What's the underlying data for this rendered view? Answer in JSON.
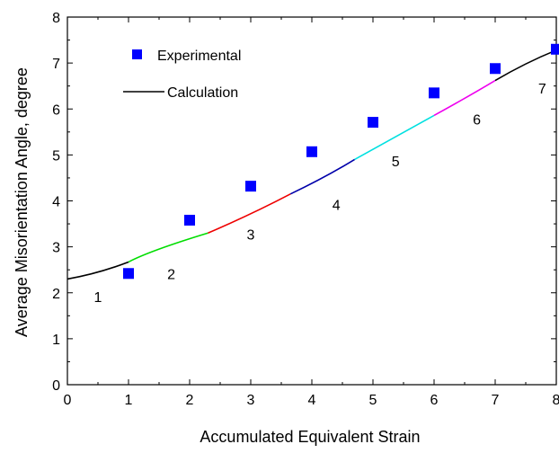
{
  "chart_data": {
    "type": "scatter",
    "title": "",
    "xlabel": "Accumulated Equivalent Strain",
    "ylabel": "Average Misorientation Angle, degree",
    "xlim": [
      0,
      8
    ],
    "ylim": [
      0,
      8
    ],
    "x_ticks": [
      0,
      1,
      2,
      3,
      4,
      5,
      6,
      7,
      8
    ],
    "y_ticks": [
      0,
      1,
      2,
      3,
      4,
      5,
      6,
      7,
      8
    ],
    "grid": false,
    "legend": {
      "position": "top-left",
      "entries": [
        {
          "label": "Experimental",
          "marker": "square",
          "color": "#0000ff"
        },
        {
          "label": "Calculation",
          "marker": "line",
          "color": "#000000"
        }
      ]
    },
    "series": [
      {
        "name": "Experimental",
        "kind": "scatter",
        "color": "#0000ff",
        "points": [
          {
            "x": 1,
            "y": 2.42
          },
          {
            "x": 2,
            "y": 3.58
          },
          {
            "x": 3,
            "y": 4.32
          },
          {
            "x": 4,
            "y": 5.07
          },
          {
            "x": 5,
            "y": 5.71
          },
          {
            "x": 6,
            "y": 6.35
          },
          {
            "x": 7,
            "y": 6.88
          },
          {
            "x": 8,
            "y": 7.3
          }
        ]
      },
      {
        "name": "Calculation",
        "kind": "line",
        "segments": [
          {
            "color": "#000000",
            "points": [
              [
                0,
                2.3
              ],
              [
                0.5,
                2.45
              ],
              [
                1.0,
                2.67
              ]
            ]
          },
          {
            "color": "#00dd00",
            "points": [
              [
                1.0,
                2.67
              ],
              [
                1.5,
                2.95
              ],
              [
                2.3,
                3.3
              ]
            ]
          },
          {
            "color": "#ee0000",
            "points": [
              [
                2.3,
                3.3
              ],
              [
                3.0,
                3.72
              ],
              [
                3.65,
                4.15
              ]
            ]
          },
          {
            "color": "#0000aa",
            "points": [
              [
                3.65,
                4.15
              ],
              [
                4.2,
                4.52
              ],
              [
                4.7,
                4.9
              ]
            ]
          },
          {
            "color": "#00e0e0",
            "points": [
              [
                4.7,
                4.9
              ],
              [
                5.35,
                5.38
              ],
              [
                6.0,
                5.86
              ]
            ]
          },
          {
            "color": "#ee00ee",
            "points": [
              [
                6.0,
                5.86
              ],
              [
                6.55,
                6.27
              ],
              [
                7.0,
                6.62
              ]
            ]
          },
          {
            "color": "#000000",
            "points": [
              [
                7.0,
                6.62
              ],
              [
                7.5,
                6.98
              ],
              [
                8.0,
                7.28
              ]
            ]
          }
        ]
      }
    ],
    "annotations": [
      {
        "text": "1",
        "x": 0.5,
        "y": 1.92
      },
      {
        "text": "2",
        "x": 1.7,
        "y": 2.42
      },
      {
        "text": "3",
        "x": 3.0,
        "y": 3.28
      },
      {
        "text": "4",
        "x": 4.4,
        "y": 3.92
      },
      {
        "text": "5",
        "x": 5.37,
        "y": 4.87
      },
      {
        "text": "6",
        "x": 6.7,
        "y": 5.78
      },
      {
        "text": "7",
        "x": 7.77,
        "y": 6.45
      }
    ]
  }
}
